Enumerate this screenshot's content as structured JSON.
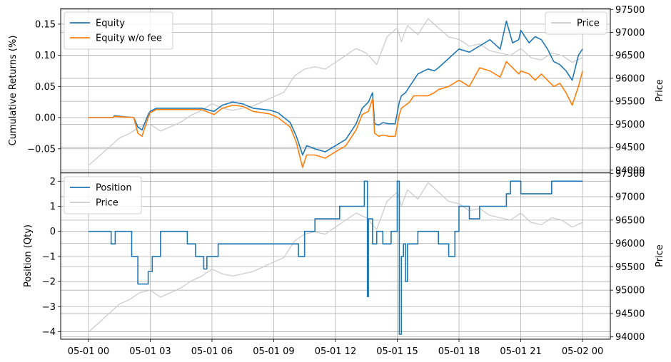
{
  "chart_data": [
    {
      "type": "line",
      "panel": "top",
      "xlabel": "",
      "ylabel": "Cumulative Returns (%)",
      "ylabel_right": "Price",
      "ylim": [
        -0.088,
        0.175
      ],
      "ylim_right": [
        93950,
        97520
      ],
      "yticks": [
        -0.05,
        0.0,
        0.05,
        0.1,
        0.15
      ],
      "ytick_labels": [
        "−0.05",
        "0.00",
        "0.05",
        "0.10",
        "0.15"
      ],
      "yticks_right": [
        94000,
        94500,
        95000,
        95500,
        96000,
        96500,
        97000,
        97500
      ],
      "ytick_labels_right": [
        "94000",
        "94500",
        "95000",
        "95500",
        "96000",
        "96500",
        "97000",
        "97500"
      ],
      "grid": true,
      "legend_left": "upper-left",
      "legend_right": "upper-right",
      "x_unit": "hours since 05-01 00:00",
      "series": [
        {
          "name": "Equity",
          "axis": "left",
          "color": "#1f77b4",
          "x": [
            0,
            1.2,
            1.25,
            2.2,
            2.4,
            2.6,
            2.9,
            3.0,
            3.3,
            4.0,
            4.8,
            5.5,
            6.1,
            6.5,
            7.0,
            7.5,
            8.0,
            8.8,
            9.2,
            9.8,
            10.1,
            10.4,
            10.6,
            11.0,
            11.5,
            12.0,
            12.5,
            13.0,
            13.3,
            13.6,
            13.8,
            13.9,
            14.1,
            14.3,
            14.6,
            14.9,
            15.1,
            15.2,
            15.4,
            15.6,
            15.8,
            16.0,
            16.3,
            16.5,
            16.8,
            17.0,
            17.5,
            18.0,
            18.5,
            19.0,
            19.5,
            20.0,
            20.3,
            20.6,
            20.9,
            21.0,
            21.4,
            21.7,
            22.0,
            22.3,
            22.6,
            22.9,
            23.2,
            23.5,
            23.8,
            24.0
          ],
          "y": [
            0.0,
            0.0,
            0.003,
            0.0,
            -0.015,
            -0.02,
            0.005,
            0.01,
            0.015,
            0.015,
            0.015,
            0.015,
            0.01,
            0.02,
            0.025,
            0.022,
            0.015,
            0.012,
            0.008,
            -0.008,
            -0.03,
            -0.06,
            -0.045,
            -0.05,
            -0.055,
            -0.045,
            -0.035,
            -0.01,
            0.015,
            0.025,
            0.04,
            -0.01,
            -0.012,
            -0.008,
            -0.01,
            -0.01,
            0.025,
            0.035,
            0.04,
            0.05,
            0.06,
            0.07,
            0.075,
            0.078,
            0.075,
            0.08,
            0.095,
            0.11,
            0.105,
            0.115,
            0.125,
            0.11,
            0.155,
            0.12,
            0.125,
            0.14,
            0.12,
            0.13,
            0.125,
            0.11,
            0.09,
            0.085,
            0.075,
            0.06,
            0.1,
            0.11
          ]
        },
        {
          "name": "Equity w/o fee",
          "axis": "left",
          "color": "#ff7f0e",
          "x": [
            0,
            1.2,
            1.25,
            2.2,
            2.4,
            2.6,
            2.9,
            3.0,
            3.3,
            4.0,
            4.8,
            5.5,
            6.1,
            6.5,
            7.0,
            7.5,
            8.0,
            8.8,
            9.2,
            9.8,
            10.1,
            10.4,
            10.6,
            11.0,
            11.5,
            12.0,
            12.5,
            13.0,
            13.3,
            13.6,
            13.8,
            13.9,
            14.1,
            14.3,
            14.6,
            14.9,
            15.1,
            15.2,
            15.4,
            15.6,
            15.8,
            16.0,
            16.3,
            16.5,
            16.8,
            17.0,
            17.5,
            18.0,
            18.5,
            19.0,
            19.5,
            20.0,
            20.3,
            20.6,
            20.9,
            21.0,
            21.4,
            21.7,
            22.0,
            22.3,
            22.6,
            22.9,
            23.2,
            23.5,
            23.8,
            24.0
          ],
          "y": [
            0.0,
            0.0,
            0.002,
            0.0,
            -0.025,
            -0.03,
            0.0,
            0.008,
            0.013,
            0.013,
            0.013,
            0.013,
            0.005,
            0.015,
            0.02,
            0.018,
            0.01,
            0.006,
            0.0,
            -0.015,
            -0.04,
            -0.08,
            -0.06,
            -0.06,
            -0.065,
            -0.055,
            -0.045,
            -0.02,
            0.005,
            0.01,
            0.03,
            -0.025,
            -0.03,
            -0.028,
            -0.03,
            -0.03,
            0.005,
            0.015,
            0.02,
            0.025,
            0.035,
            0.035,
            0.035,
            0.035,
            0.04,
            0.045,
            0.05,
            0.06,
            0.05,
            0.08,
            0.075,
            0.065,
            0.09,
            0.08,
            0.07,
            0.075,
            0.07,
            0.06,
            0.07,
            0.06,
            0.05,
            0.055,
            0.04,
            0.02,
            0.05,
            0.075
          ]
        },
        {
          "name": "Price",
          "axis": "right",
          "color": "#cccccc",
          "x": [
            0,
            0.5,
            1.0,
            1.5,
            2.0,
            2.5,
            3.0,
            3.5,
            4.0,
            4.5,
            5.0,
            5.5,
            6.0,
            6.5,
            7.0,
            7.5,
            8.0,
            8.5,
            9.0,
            9.5,
            10.0,
            10.5,
            11.0,
            11.5,
            12.0,
            12.5,
            13.0,
            13.5,
            14.0,
            14.5,
            15.0,
            15.2,
            15.5,
            16.0,
            16.5,
            17.0,
            17.5,
            18.0,
            18.5,
            19.0,
            19.5,
            20.0,
            20.5,
            21.0,
            21.5,
            22.0,
            22.5,
            23.0,
            23.5,
            24.0
          ],
          "y": [
            94100,
            94300,
            94500,
            94700,
            94800,
            94950,
            95000,
            94850,
            94950,
            95050,
            95200,
            95300,
            95450,
            95350,
            95300,
            95350,
            95400,
            95500,
            95600,
            95700,
            96050,
            96200,
            96250,
            96200,
            96350,
            96500,
            96650,
            96550,
            96300,
            96900,
            97100,
            96800,
            97150,
            96950,
            97300,
            97100,
            96900,
            96850,
            96700,
            96750,
            96600,
            96550,
            96500,
            96650,
            96450,
            96400,
            96550,
            96500,
            96350,
            96450
          ]
        }
      ]
    },
    {
      "type": "line",
      "panel": "bottom",
      "xlabel": "",
      "ylabel": "Position (Qty)",
      "ylabel_right": "Price",
      "ylim": [
        -4.3,
        2.35
      ],
      "ylim_right": [
        93950,
        97520
      ],
      "yticks": [
        -4,
        -3,
        -2,
        -1,
        0,
        1,
        2
      ],
      "ytick_labels": [
        "−4",
        "−3",
        "−2",
        "−1",
        "0",
        "1",
        "2"
      ],
      "yticks_right": [
        94000,
        94500,
        95000,
        95500,
        96000,
        96500,
        97000,
        97500
      ],
      "ytick_labels_right": [
        "94000",
        "94500",
        "95000",
        "95500",
        "96000",
        "96500",
        "97000",
        "97500"
      ],
      "xticks": [
        0,
        3,
        6,
        9,
        12,
        15,
        18,
        21,
        24
      ],
      "xtick_labels": [
        "05-01 00",
        "05-01 03",
        "05-01 06",
        "05-01 09",
        "05-01 12",
        "05-01 15",
        "05-01 18",
        "05-01 21",
        "05-02 00"
      ],
      "grid": true,
      "legend": "upper-left",
      "x_unit": "hours since 05-01 00:00",
      "series": [
        {
          "name": "Position",
          "axis": "left",
          "color": "#1f77b4",
          "step": true,
          "x": [
            0,
            1.1,
            1.3,
            2.1,
            2.4,
            2.9,
            3.1,
            3.5,
            4.8,
            5.2,
            5.6,
            5.75,
            6.3,
            10.2,
            10.5,
            11.0,
            12.2,
            13.2,
            13.4,
            13.55,
            13.6,
            13.8,
            14.0,
            14.3,
            14.7,
            15.0,
            15.1,
            15.2,
            15.3,
            15.4,
            15.5,
            16.0,
            17.0,
            17.5,
            17.8,
            18.0,
            18.5,
            19.0,
            20.3,
            20.5,
            21.0,
            22.5,
            24.0
          ],
          "y": [
            0,
            -0.5,
            0,
            -1.0,
            -2.1,
            -1.6,
            -1.0,
            0,
            -0.5,
            -1.0,
            -1.5,
            -1.0,
            -0.5,
            -1.0,
            0,
            0.5,
            1.0,
            1.0,
            2.0,
            -2.6,
            0.5,
            -0.5,
            0,
            -0.5,
            0,
            2.0,
            -4.1,
            -1.0,
            -0.5,
            -2.0,
            -0.5,
            0,
            -0.5,
            -1.0,
            0,
            1.0,
            0.5,
            1.0,
            1.5,
            2.0,
            1.5,
            2.0,
            2.0
          ]
        },
        {
          "name": "Price",
          "axis": "right",
          "color": "#cccccc",
          "x": [
            0,
            0.5,
            1.0,
            1.5,
            2.0,
            2.5,
            3.0,
            3.5,
            4.0,
            4.5,
            5.0,
            5.5,
            6.0,
            6.5,
            7.0,
            7.5,
            8.0,
            8.5,
            9.0,
            9.5,
            10.0,
            10.5,
            11.0,
            11.5,
            12.0,
            12.5,
            13.0,
            13.5,
            14.0,
            14.5,
            15.0,
            15.2,
            15.5,
            16.0,
            16.5,
            17.0,
            17.5,
            18.0,
            18.5,
            19.0,
            19.5,
            20.0,
            20.5,
            21.0,
            21.5,
            22.0,
            22.5,
            23.0,
            23.5,
            24.0
          ],
          "y": [
            94100,
            94300,
            94500,
            94700,
            94800,
            94950,
            95000,
            94850,
            94950,
            95050,
            95200,
            95300,
            95450,
            95350,
            95300,
            95350,
            95400,
            95500,
            95600,
            95700,
            96050,
            96200,
            96250,
            96200,
            96350,
            96500,
            96650,
            96550,
            96300,
            96900,
            97100,
            96800,
            97150,
            96950,
            97300,
            97100,
            96900,
            96850,
            96700,
            96750,
            96600,
            96550,
            96500,
            96650,
            96450,
            96400,
            96550,
            96500,
            96350,
            96450
          ]
        }
      ]
    }
  ]
}
